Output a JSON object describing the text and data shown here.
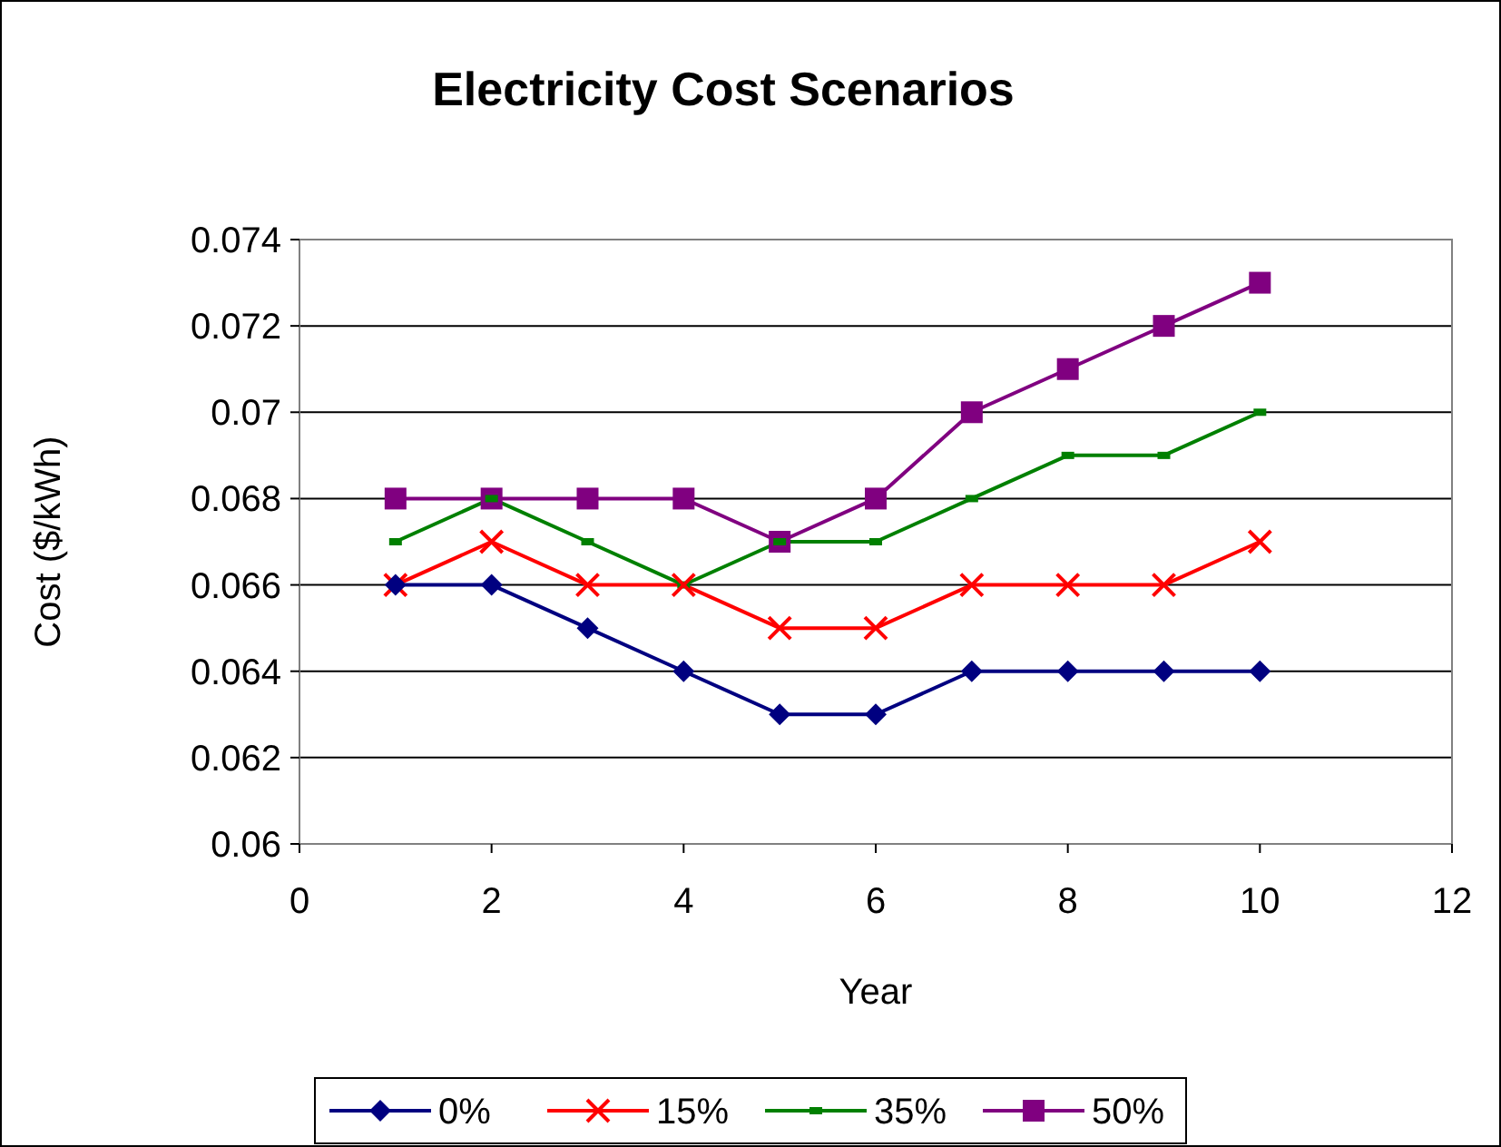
{
  "chart_data": {
    "type": "line",
    "title": "Electricity Cost Scenarios",
    "xlabel": "Year",
    "ylabel": "Cost ($/kWh)",
    "x": [
      1,
      2,
      3,
      4,
      5,
      6,
      7,
      8,
      9,
      10
    ],
    "xlim": [
      0,
      12
    ],
    "xticks": [
      0,
      2,
      4,
      6,
      8,
      10,
      12
    ],
    "ylim": [
      0.06,
      0.074
    ],
    "yticks": [
      0.06,
      0.062,
      0.064,
      0.066,
      0.068,
      0.07,
      0.072,
      0.074
    ],
    "grid": "y",
    "legend": "bottom",
    "series": [
      {
        "name": "0%",
        "color": "#000080",
        "marker": "diamond",
        "values": [
          0.066,
          0.066,
          0.065,
          0.064,
          0.063,
          0.063,
          0.064,
          0.064,
          0.064,
          0.064
        ]
      },
      {
        "name": "15%",
        "color": "#ff0000",
        "marker": "cross",
        "values": [
          0.066,
          0.067,
          0.066,
          0.066,
          0.065,
          0.065,
          0.066,
          0.066,
          0.066,
          0.067
        ]
      },
      {
        "name": "35%",
        "color": "#008000",
        "marker": "square",
        "values": [
          0.067,
          0.068,
          0.067,
          0.066,
          0.067,
          0.067,
          0.068,
          0.069,
          0.069,
          0.07
        ]
      },
      {
        "name": "50%",
        "color": "#800080",
        "marker": "square",
        "values": [
          0.068,
          0.068,
          0.068,
          0.068,
          0.067,
          0.068,
          0.07,
          0.071,
          0.072,
          0.073
        ]
      }
    ]
  }
}
